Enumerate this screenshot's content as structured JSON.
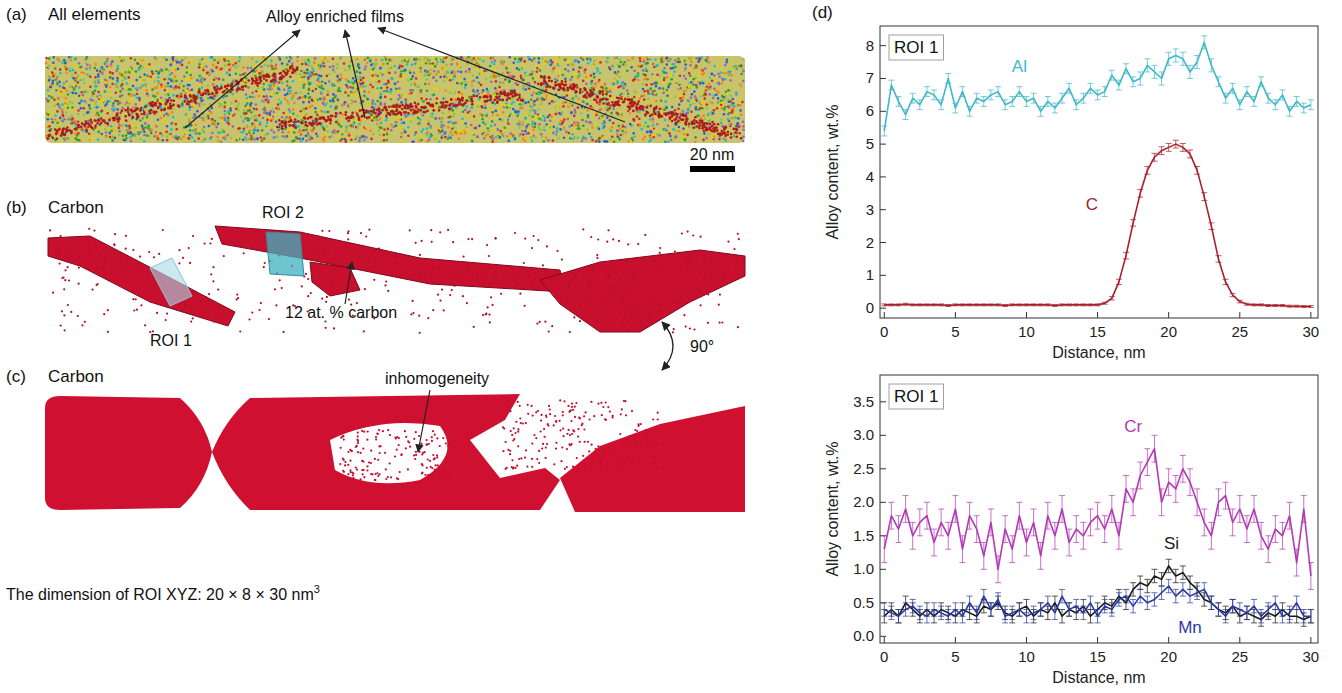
{
  "figure": {
    "panel_a": {
      "letter": "(a)",
      "title": "All elements",
      "annotation": "Alloy enriched films",
      "scale_bar": "20 nm"
    },
    "panel_b": {
      "letter": "(b)",
      "title": "Carbon",
      "roi_labels": [
        "ROI 1",
        "ROI 2"
      ],
      "annotation": "12 at. % carbon",
      "rotation_label": "90°"
    },
    "panel_c": {
      "letter": "(c)",
      "title": "Carbon",
      "annotation": "inhomogeneity"
    },
    "panel_d": {
      "letter": "(d)"
    },
    "caption": {
      "text": "The dimension of ROI XYZ: 20 × 8 × 30 nm",
      "superscript": "3"
    }
  },
  "chart_data": [
    {
      "type": "line",
      "title": "ROI 1",
      "xlabel": "Distance, nm",
      "ylabel": "Alloy content, wt.%",
      "x": [
        0,
        0.5,
        1,
        1.5,
        2,
        2.5,
        3,
        3.5,
        4,
        4.5,
        5,
        5.5,
        6,
        6.5,
        7,
        7.5,
        8,
        8.5,
        9,
        9.5,
        10,
        10.5,
        11,
        11.5,
        12,
        12.5,
        13,
        13.5,
        14,
        14.5,
        15,
        15.5,
        16,
        16.5,
        17,
        17.5,
        18,
        18.5,
        19,
        19.5,
        20,
        20.5,
        21,
        21.5,
        22,
        22.5,
        23,
        23.5,
        24,
        24.5,
        25,
        25.5,
        26,
        26.5,
        27,
        27.5,
        28,
        28.5,
        29,
        29.5,
        30
      ],
      "xlim": [
        -0.3,
        30.5
      ],
      "xticks": [
        0,
        5,
        10,
        15,
        20,
        25,
        30
      ],
      "ylim": [
        -0.3,
        8.6
      ],
      "yticks": [
        0,
        1,
        2,
        3,
        4,
        5,
        6,
        7,
        8
      ],
      "grid": false,
      "series": [
        {
          "name": "Al",
          "color": "#3fb8c8",
          "values": [
            5.4,
            6.8,
            6.3,
            5.9,
            6.4,
            6.2,
            6.6,
            6.5,
            6.2,
            7.0,
            6.1,
            6.6,
            6.0,
            6.4,
            6.3,
            6.5,
            6.6,
            6.2,
            6.3,
            6.6,
            6.3,
            6.4,
            6.0,
            6.3,
            6.1,
            6.4,
            6.7,
            6.2,
            6.4,
            6.7,
            6.5,
            6.6,
            7.1,
            6.8,
            7.3,
            6.9,
            7.0,
            7.4,
            7.2,
            7.0,
            7.6,
            7.7,
            7.6,
            7.2,
            7.5,
            8.1,
            7.4,
            6.9,
            6.4,
            6.7,
            6.2,
            6.6,
            6.3,
            6.9,
            6.4,
            6.2,
            6.5,
            6.0,
            6.3,
            6.1,
            6.2
          ],
          "errors": [
            0.15,
            0.15,
            0.15,
            0.15,
            0.15,
            0.15,
            0.15,
            0.15,
            0.15,
            0.15,
            0.15,
            0.15,
            0.15,
            0.15,
            0.15,
            0.15,
            0.15,
            0.15,
            0.15,
            0.15,
            0.15,
            0.15,
            0.15,
            0.15,
            0.15,
            0.15,
            0.15,
            0.15,
            0.15,
            0.15,
            0.15,
            0.15,
            0.15,
            0.15,
            0.15,
            0.15,
            0.2,
            0.2,
            0.2,
            0.2,
            0.2,
            0.2,
            0.2,
            0.2,
            0.2,
            0.2,
            0.2,
            0.15,
            0.15,
            0.15,
            0.15,
            0.15,
            0.15,
            0.15,
            0.15,
            0.15,
            0.15,
            0.15,
            0.15,
            0.15,
            0.15
          ]
        },
        {
          "name": "C",
          "color": "#a8202a",
          "values": [
            0.1,
            0.1,
            0.1,
            0.12,
            0.1,
            0.1,
            0.1,
            0.1,
            0.1,
            0.08,
            0.1,
            0.1,
            0.1,
            0.1,
            0.1,
            0.1,
            0.1,
            0.08,
            0.1,
            0.1,
            0.1,
            0.1,
            0.1,
            0.1,
            0.08,
            0.1,
            0.1,
            0.1,
            0.1,
            0.1,
            0.1,
            0.15,
            0.3,
            0.8,
            1.6,
            2.6,
            3.5,
            4.2,
            4.6,
            4.8,
            4.9,
            5.0,
            4.9,
            4.7,
            4.2,
            3.4,
            2.5,
            1.5,
            0.8,
            0.4,
            0.2,
            0.12,
            0.1,
            0.1,
            0.08,
            0.08,
            0.08,
            0.06,
            0.06,
            0.05,
            0.05
          ],
          "errors": [
            0.03,
            0.03,
            0.03,
            0.03,
            0.03,
            0.03,
            0.03,
            0.03,
            0.03,
            0.03,
            0.03,
            0.03,
            0.03,
            0.03,
            0.03,
            0.03,
            0.03,
            0.03,
            0.03,
            0.03,
            0.03,
            0.03,
            0.03,
            0.03,
            0.03,
            0.03,
            0.03,
            0.03,
            0.03,
            0.03,
            0.03,
            0.03,
            0.05,
            0.08,
            0.1,
            0.1,
            0.12,
            0.12,
            0.12,
            0.12,
            0.12,
            0.12,
            0.12,
            0.12,
            0.12,
            0.12,
            0.1,
            0.1,
            0.08,
            0.05,
            0.04,
            0.03,
            0.03,
            0.03,
            0.03,
            0.03,
            0.03,
            0.03,
            0.03,
            0.03,
            0.03
          ]
        }
      ]
    },
    {
      "type": "line",
      "title": "ROI 1",
      "xlabel": "Distance, nm",
      "ylabel": "Alloy content, wt.%",
      "x": [
        0,
        0.5,
        1,
        1.5,
        2,
        2.5,
        3,
        3.5,
        4,
        4.5,
        5,
        5.5,
        6,
        6.5,
        7,
        7.5,
        8,
        8.5,
        9,
        9.5,
        10,
        10.5,
        11,
        11.5,
        12,
        12.5,
        13,
        13.5,
        14,
        14.5,
        15,
        15.5,
        16,
        16.5,
        17,
        17.5,
        18,
        18.5,
        19,
        19.5,
        20,
        20.5,
        21,
        21.5,
        22,
        22.5,
        23,
        23.5,
        24,
        24.5,
        25,
        25.5,
        26,
        26.5,
        27,
        27.5,
        28,
        28.5,
        29,
        29.5,
        30
      ],
      "xlim": [
        -0.3,
        30.5
      ],
      "xticks": [
        0,
        5,
        10,
        15,
        20,
        25,
        30
      ],
      "ylim": [
        -0.1,
        3.9
      ],
      "yticks": [
        {
          "value": 0,
          "label": "0.0"
        },
        0.5,
        {
          "value": 1,
          "label": "1.0"
        },
        1.5,
        {
          "value": 2,
          "label": "2.0"
        },
        2.5,
        {
          "value": 3,
          "label": "3.0"
        },
        3.5
      ],
      "grid": false,
      "series": [
        {
          "name": "Cr",
          "color": "#b23ab2",
          "values": [
            1.3,
            1.8,
            1.6,
            1.9,
            1.5,
            1.7,
            1.8,
            1.4,
            1.7,
            1.5,
            1.9,
            1.3,
            1.8,
            1.6,
            1.2,
            1.7,
            1.0,
            1.6,
            1.3,
            1.8,
            1.4,
            1.7,
            1.2,
            1.8,
            1.5,
            1.9,
            1.4,
            1.6,
            1.5,
            1.7,
            1.8,
            1.6,
            1.9,
            1.5,
            2.2,
            2.0,
            2.4,
            2.6,
            2.8,
            2.0,
            2.3,
            2.2,
            2.5,
            2.3,
            2.0,
            1.7,
            1.5,
            2.0,
            2.1,
            1.7,
            1.9,
            1.6,
            1.9,
            1.5,
            1.3,
            1.6,
            1.5,
            1.8,
            1.1,
            1.9,
            0.9
          ],
          "errors": [
            0.2,
            0.2,
            0.2,
            0.2,
            0.2,
            0.2,
            0.2,
            0.2,
            0.2,
            0.2,
            0.2,
            0.2,
            0.2,
            0.2,
            0.2,
            0.2,
            0.2,
            0.2,
            0.2,
            0.2,
            0.2,
            0.2,
            0.2,
            0.2,
            0.2,
            0.2,
            0.2,
            0.2,
            0.2,
            0.2,
            0.2,
            0.2,
            0.2,
            0.2,
            0.2,
            0.2,
            0.2,
            0.2,
            0.2,
            0.2,
            0.2,
            0.2,
            0.2,
            0.2,
            0.2,
            0.2,
            0.2,
            0.2,
            0.2,
            0.2,
            0.2,
            0.2,
            0.2,
            0.2,
            0.2,
            0.2,
            0.2,
            0.2,
            0.2,
            0.2,
            0.2
          ]
        },
        {
          "name": "Si",
          "color": "#1a1a1a",
          "values": [
            0.3,
            0.4,
            0.3,
            0.5,
            0.4,
            0.3,
            0.4,
            0.3,
            0.4,
            0.35,
            0.3,
            0.4,
            0.35,
            0.3,
            0.45,
            0.4,
            0.5,
            0.35,
            0.3,
            0.4,
            0.45,
            0.3,
            0.4,
            0.35,
            0.5,
            0.3,
            0.4,
            0.35,
            0.45,
            0.3,
            0.4,
            0.5,
            0.45,
            0.6,
            0.5,
            0.7,
            0.8,
            0.75,
            0.9,
            0.85,
            1.05,
            0.9,
            0.95,
            0.8,
            0.7,
            0.55,
            0.5,
            0.4,
            0.35,
            0.45,
            0.3,
            0.35,
            0.3,
            0.25,
            0.35,
            0.3,
            0.4,
            0.3,
            0.3,
            0.25,
            0.3
          ],
          "errors": [
            0.1,
            0.1,
            0.1,
            0.1,
            0.1,
            0.1,
            0.1,
            0.1,
            0.1,
            0.1,
            0.1,
            0.1,
            0.1,
            0.1,
            0.1,
            0.1,
            0.1,
            0.1,
            0.1,
            0.1,
            0.1,
            0.1,
            0.1,
            0.1,
            0.1,
            0.1,
            0.1,
            0.1,
            0.1,
            0.1,
            0.1,
            0.1,
            0.1,
            0.1,
            0.1,
            0.1,
            0.1,
            0.1,
            0.1,
            0.1,
            0.1,
            0.1,
            0.1,
            0.1,
            0.1,
            0.1,
            0.1,
            0.1,
            0.1,
            0.1,
            0.1,
            0.1,
            0.1,
            0.1,
            0.1,
            0.1,
            0.1,
            0.1,
            0.1,
            0.1,
            0.1
          ]
        },
        {
          "name": "Mn",
          "color": "#2b3aa0",
          "values": [
            0.4,
            0.35,
            0.3,
            0.4,
            0.45,
            0.35,
            0.3,
            0.4,
            0.35,
            0.3,
            0.4,
            0.3,
            0.5,
            0.35,
            0.6,
            0.4,
            0.55,
            0.3,
            0.35,
            0.4,
            0.3,
            0.35,
            0.4,
            0.5,
            0.35,
            0.6,
            0.4,
            0.45,
            0.35,
            0.5,
            0.3,
            0.45,
            0.4,
            0.55,
            0.6,
            0.45,
            0.6,
            0.5,
            0.55,
            0.65,
            0.75,
            0.6,
            0.7,
            0.6,
            0.65,
            0.7,
            0.5,
            0.4,
            0.3,
            0.45,
            0.4,
            0.35,
            0.45,
            0.3,
            0.4,
            0.5,
            0.3,
            0.35,
            0.5,
            0.3,
            0.3
          ],
          "errors": [
            0.1,
            0.1,
            0.1,
            0.1,
            0.1,
            0.1,
            0.1,
            0.1,
            0.1,
            0.1,
            0.1,
            0.1,
            0.1,
            0.1,
            0.1,
            0.1,
            0.1,
            0.1,
            0.1,
            0.1,
            0.1,
            0.1,
            0.1,
            0.1,
            0.1,
            0.1,
            0.1,
            0.1,
            0.1,
            0.1,
            0.1,
            0.1,
            0.1,
            0.1,
            0.1,
            0.1,
            0.1,
            0.1,
            0.1,
            0.1,
            0.1,
            0.1,
            0.1,
            0.1,
            0.1,
            0.1,
            0.1,
            0.1,
            0.1,
            0.1,
            0.1,
            0.1,
            0.1,
            0.1,
            0.1,
            0.1,
            0.1,
            0.1,
            0.1,
            0.1,
            0.1
          ]
        }
      ]
    }
  ]
}
